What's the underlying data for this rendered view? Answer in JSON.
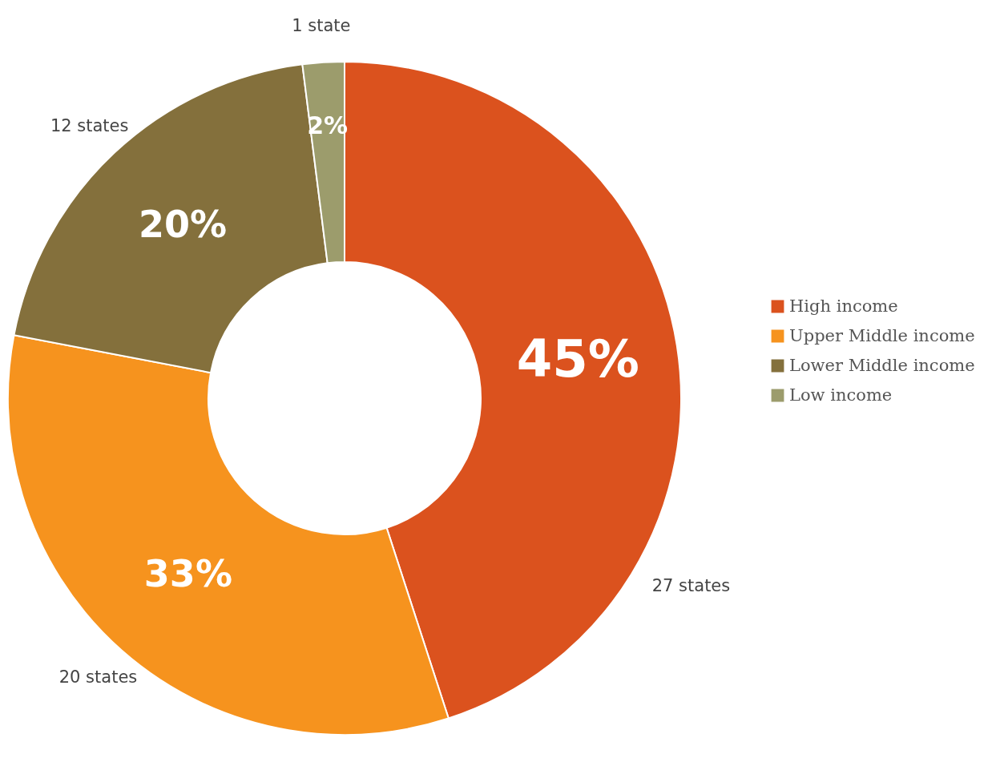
{
  "chart_data": {
    "type": "donut",
    "categories": [
      "High income",
      "Upper Middle income",
      "Lower Middle income",
      "Low income"
    ],
    "values": [
      45,
      33,
      20,
      2
    ],
    "colors": [
      "#db521e",
      "#f6931e",
      "#84703c",
      "#9c9c6c"
    ],
    "value_labels": [
      "45%",
      "33%",
      "20%",
      "2%"
    ],
    "annotations": [
      "27 states",
      "20 states",
      "12 states",
      "1 state"
    ],
    "legend": "right"
  }
}
